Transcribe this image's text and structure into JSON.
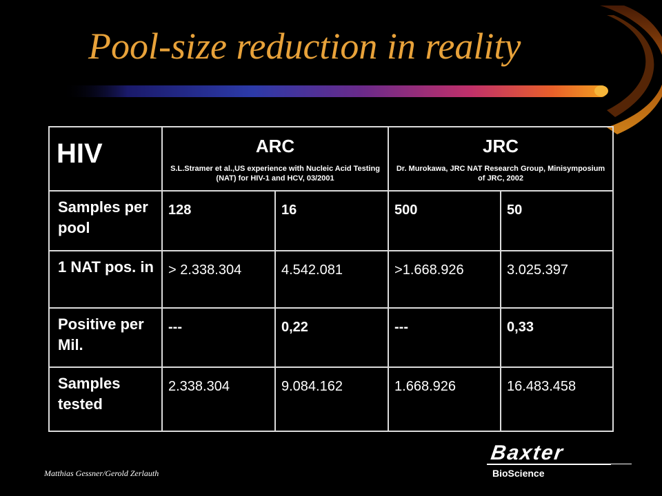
{
  "slide": {
    "title": "Pool-size reduction in reality",
    "author": "Matthias Gessner/Gerold Zerlauth",
    "logo": {
      "word": "Baxter",
      "sub": "BioScience"
    },
    "colors": {
      "title": "#e8a23a",
      "background": "#000000",
      "grid": "#dcdcdc"
    }
  },
  "table": {
    "corner": "HIV",
    "groups": [
      {
        "name": "ARC",
        "source": "S.L.Stramer et al.,US experience with Nucleic Acid Testing (NAT) for HIV-1 and HCV, 03/2001"
      },
      {
        "name": "JRC",
        "source": "Dr. Murokawa, JRC NAT Research Group, Minisymposium of JRC, 2002"
      }
    ],
    "rows": [
      {
        "label": "Samples per pool",
        "values": [
          "128",
          "16",
          "500",
          "50"
        ]
      },
      {
        "label": "1 NAT pos. in",
        "values": [
          "> 2.338.304",
          "4.542.081",
          ">1.668.926",
          "3.025.397"
        ]
      },
      {
        "label": "Positive per Mil.",
        "values": [
          "---",
          "0,22",
          "---",
          "0,33"
        ]
      },
      {
        "label": "Samples tested",
        "values": [
          "2.338.304",
          "9.084.162",
          "1.668.926",
          "16.483.458"
        ]
      }
    ]
  }
}
